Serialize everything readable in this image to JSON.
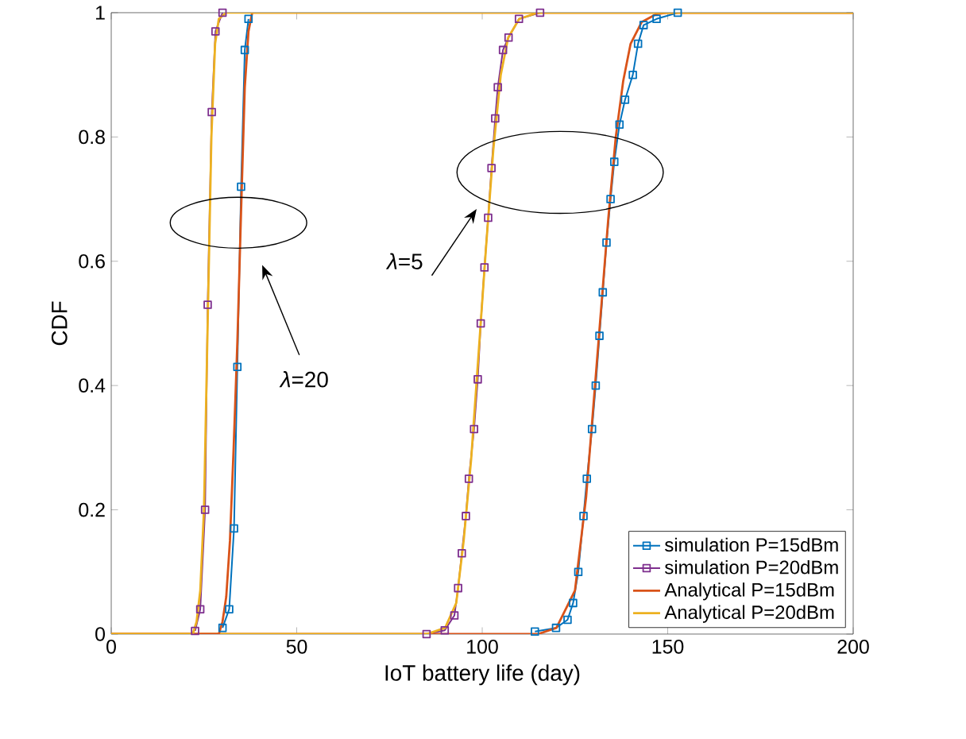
{
  "chart_data": {
    "type": "line",
    "xlabel": "IoT battery life (day)",
    "ylabel": "CDF",
    "xlim": [
      0,
      200
    ],
    "xticks": [
      0,
      50,
      100,
      150,
      200
    ],
    "ylim": [
      0,
      1
    ],
    "yticks": [
      0,
      0.2,
      0.4,
      0.6,
      0.8,
      1
    ],
    "grid": false,
    "legend": "bottom right",
    "annotations": [
      "*λ*=20",
      "*λ*=5"
    ],
    "series": [
      {
        "name": "simulation P=15dBm",
        "color": "#0072bd",
        "marker": "square",
        "x": [
          30,
          31.8,
          33.1,
          34.0,
          35.0,
          36.0,
          37.0
        ],
        "values": [
          0.01,
          0.04,
          0.17,
          0.43,
          0.72,
          0.94,
          0.99
        ]
      },
      {
        "name": "simulation P=20dBm",
        "color": "#7e2f8e",
        "marker": "square",
        "x": [
          22.6,
          24.0,
          25.3,
          26.0,
          27.1,
          28.1,
          30.0
        ],
        "values": [
          0.005,
          0.04,
          0.2,
          0.53,
          0.84,
          0.97,
          1.0
        ]
      },
      {
        "name": "Analytical P=15dBm",
        "color": "#d95319",
        "marker": "none",
        "x": [
          0,
          29,
          30,
          31,
          32,
          33,
          34,
          35,
          36,
          37,
          38,
          200
        ],
        "values": [
          0,
          0,
          0.02,
          0.06,
          0.15,
          0.3,
          0.47,
          0.68,
          0.88,
          0.97,
          1,
          1
        ]
      },
      {
        "name": "Analytical P=20dBm",
        "color": "#edb120",
        "marker": "none",
        "x": [
          0,
          22,
          23,
          24,
          25,
          26,
          27,
          28,
          29,
          31,
          200
        ],
        "values": [
          0,
          0,
          0.02,
          0.07,
          0.2,
          0.5,
          0.8,
          0.95,
          0.99,
          1,
          1
        ]
      },
      {
        "color": "#0072bd",
        "marker": "square",
        "x": [
          114.2,
          119.9,
          123.0,
          124.5,
          125.9,
          127.3,
          128.2,
          129.6,
          130.6,
          131.6,
          132.5,
          133.5,
          134.6,
          135.6,
          137.0,
          138.5,
          140.6,
          142.0,
          143.5,
          147.0,
          152.7
        ],
        "values": [
          0.004,
          0.01,
          0.023,
          0.05,
          0.1,
          0.19,
          0.25,
          0.33,
          0.4,
          0.48,
          0.55,
          0.63,
          0.7,
          0.76,
          0.82,
          0.86,
          0.9,
          0.95,
          0.98,
          0.99,
          1.0
        ]
      },
      {
        "color": "#7e2f8e",
        "marker": "square",
        "x": [
          85,
          89.9,
          92.5,
          93.5,
          94.5,
          95.6,
          96.4,
          97.8,
          98.8,
          99.6,
          100.6,
          101.6,
          102.5,
          103.5,
          104.2,
          105.6,
          107.1,
          109.9,
          115.6
        ],
        "values": [
          0.0,
          0.006,
          0.03,
          0.074,
          0.13,
          0.19,
          0.25,
          0.33,
          0.41,
          0.5,
          0.59,
          0.67,
          0.75,
          0.83,
          0.88,
          0.94,
          0.96,
          0.99,
          1.0
        ]
      },
      {
        "color": "#d95319",
        "marker": "none",
        "x": [
          0,
          115,
          120,
          125,
          128,
          130,
          132,
          134,
          136,
          138,
          140,
          143,
          147,
          150,
          200
        ],
        "values": [
          0,
          0,
          0.01,
          0.07,
          0.22,
          0.37,
          0.52,
          0.67,
          0.8,
          0.89,
          0.95,
          0.985,
          0.998,
          1,
          1
        ]
      },
      {
        "color": "#edb120",
        "marker": "none",
        "x": [
          0,
          85,
          90,
          93,
          95,
          97,
          99,
          101,
          103,
          105,
          107,
          110,
          115,
          200
        ],
        "values": [
          0,
          0,
          0.01,
          0.05,
          0.15,
          0.28,
          0.45,
          0.62,
          0.78,
          0.9,
          0.96,
          0.99,
          1,
          1
        ]
      }
    ]
  }
}
